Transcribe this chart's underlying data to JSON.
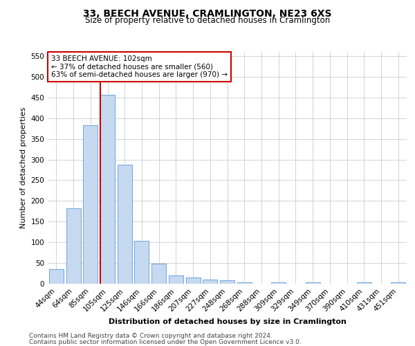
{
  "title": "33, BEECH AVENUE, CRAMLINGTON, NE23 6XS",
  "subtitle": "Size of property relative to detached houses in Cramlington",
  "xlabel": "Distribution of detached houses by size in Cramlington",
  "ylabel": "Number of detached properties",
  "footer_line1": "Contains HM Land Registry data © Crown copyright and database right 2024.",
  "footer_line2": "Contains public sector information licensed under the Open Government Licence v3.0.",
  "categories": [
    "44sqm",
    "64sqm",
    "85sqm",
    "105sqm",
    "125sqm",
    "146sqm",
    "166sqm",
    "186sqm",
    "207sqm",
    "227sqm",
    "248sqm",
    "268sqm",
    "288sqm",
    "309sqm",
    "329sqm",
    "349sqm",
    "370sqm",
    "390sqm",
    "410sqm",
    "431sqm",
    "451sqm"
  ],
  "values": [
    35,
    183,
    383,
    457,
    287,
    103,
    48,
    20,
    15,
    10,
    8,
    4,
    0,
    4,
    0,
    4,
    0,
    0,
    4,
    0,
    4
  ],
  "bar_color": "#c5d9f0",
  "bar_edge_color": "#5b9bd5",
  "red_line_index": 3,
  "annotation_text_line1": "33 BEECH AVENUE: 102sqm",
  "annotation_text_line2": "← 37% of detached houses are smaller (560)",
  "annotation_text_line3": "63% of semi-detached houses are larger (970) →",
  "annotation_box_edge_color": "#cc0000",
  "red_line_color": "#cc0000",
  "ylim": [
    0,
    560
  ],
  "yticks": [
    0,
    50,
    100,
    150,
    200,
    250,
    300,
    350,
    400,
    450,
    500,
    550
  ],
  "background_color": "#ffffff",
  "grid_color": "#cccccc",
  "title_fontsize": 10,
  "subtitle_fontsize": 8.5,
  "xlabel_fontsize": 8,
  "ylabel_fontsize": 8,
  "tick_fontsize": 7.5,
  "footer_fontsize": 6.5,
  "annotation_fontsize": 7.5
}
